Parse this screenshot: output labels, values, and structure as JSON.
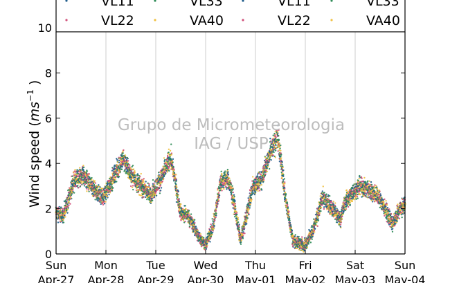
{
  "chart_data": {
    "type": "scatter",
    "title": "",
    "xlabel": "",
    "ylabel": "Wind speed",
    "ylabel_unit_base": "ms",
    "ylabel_unit_exp": "−1",
    "ylim": [
      0,
      10
    ],
    "yticks": [
      0,
      2,
      4,
      6,
      8,
      10
    ],
    "grid": "vertical",
    "legend_placement": "top (cropped)",
    "x_days": [
      {
        "day": "Sun",
        "date": "Apr-27"
      },
      {
        "day": "Mon",
        "date": "Apr-28"
      },
      {
        "day": "Tue",
        "date": "Apr-29"
      },
      {
        "day": "Wed",
        "date": "Apr-30"
      },
      {
        "day": "Thu",
        "date": "May-01"
      },
      {
        "day": "Fri",
        "date": "May-02"
      },
      {
        "day": "Sat",
        "date": "May-03"
      },
      {
        "day": "Sun",
        "date": "May-04"
      }
    ],
    "legend_entries": [
      {
        "name": "VL11",
        "color": "#1f5c8b"
      },
      {
        "name": "VL33",
        "color": "#2e8b57"
      },
      {
        "name": "VL11",
        "color": "#1f5c8b"
      },
      {
        "name": "VL33",
        "color": "#2e8b57"
      },
      {
        "name": "VL22",
        "color": "#d0507a"
      },
      {
        "name": "VA40",
        "color": "#f0c040"
      },
      {
        "name": "VL22",
        "color": "#d0507a"
      },
      {
        "name": "VA40",
        "color": "#f0c040"
      }
    ],
    "series": [
      {
        "name": "VL11",
        "color": "#1f5c8b"
      },
      {
        "name": "VL22",
        "color": "#d0507a"
      },
      {
        "name": "VL33",
        "color": "#2e8b57"
      },
      {
        "name": "VA40",
        "color": "#f0c040"
      }
    ],
    "profile": {
      "x_days": [
        0.0,
        0.15,
        0.35,
        0.55,
        0.75,
        0.95,
        1.2,
        1.35,
        1.5,
        1.7,
        1.9,
        2.1,
        2.3,
        2.5,
        2.65,
        2.85,
        3.0,
        3.15,
        3.3,
        3.45,
        3.55,
        3.7,
        3.8,
        3.95,
        4.1,
        4.3,
        4.45,
        4.6,
        4.75,
        4.85,
        5.0,
        5.15,
        5.35,
        5.55,
        5.7,
        5.8,
        5.95,
        6.1,
        6.3,
        6.45,
        6.6,
        6.75,
        6.9,
        7.0
      ],
      "wind_speed": [
        1.8,
        1.7,
        3.2,
        3.5,
        2.8,
        2.5,
        3.6,
        4.2,
        3.5,
        3.0,
        2.6,
        3.3,
        4.3,
        1.8,
        1.7,
        0.8,
        0.4,
        1.2,
        3.2,
        3.3,
        2.5,
        0.6,
        1.5,
        3.0,
        3.2,
        4.5,
        5.2,
        2.5,
        0.6,
        0.5,
        0.4,
        1.0,
        2.5,
        2.0,
        1.5,
        2.3,
        2.7,
        3.0,
        2.8,
        2.6,
        2.0,
        1.3,
        2.0,
        2.2
      ]
    }
  },
  "watermark": {
    "line1": "Grupo de Micrometeorologia",
    "line2": "IAG / USP"
  }
}
